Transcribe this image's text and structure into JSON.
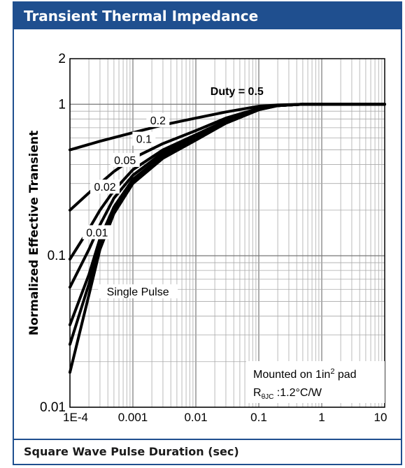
{
  "header": {
    "title": "Transient Thermal Impedance"
  },
  "footer": {
    "xlabel": "Square Wave Pulse Duration (sec)"
  },
  "chart_data": {
    "type": "line",
    "title": "Transient Thermal Impedance",
    "xlabel": "Square Wave Pulse Duration (sec)",
    "ylabel": "Normalized Effective Transient",
    "x_scale": "log",
    "y_scale": "log",
    "xlim": [
      0.0001,
      10
    ],
    "ylim": [
      0.01,
      2
    ],
    "x_ticks": [
      {
        "value": 0.0001,
        "label": "1E-4"
      },
      {
        "value": 0.001,
        "label": "0.001"
      },
      {
        "value": 0.01,
        "label": "0.01"
      },
      {
        "value": 0.1,
        "label": "0.1"
      },
      {
        "value": 1,
        "label": "1"
      },
      {
        "value": 10,
        "label": "10"
      }
    ],
    "y_ticks": [
      {
        "value": 0.01,
        "label": "0.01"
      },
      {
        "value": 0.1,
        "label": "0.1"
      },
      {
        "value": 1,
        "label": "1"
      },
      {
        "value": 2,
        "label": "2"
      }
    ],
    "grid": true,
    "color": "#000000",
    "series": [
      {
        "name": "Duty = 0.5",
        "x": [
          0.0001,
          0.0003,
          0.001,
          0.003,
          0.01,
          0.03,
          0.1,
          0.2,
          0.5,
          1,
          10
        ],
        "y": [
          0.5,
          0.57,
          0.65,
          0.73,
          0.81,
          0.89,
          0.97,
          0.99,
          1.0,
          1.0,
          1.0
        ]
      },
      {
        "name": "0.2",
        "x": [
          0.0001,
          0.0002,
          0.0003,
          0.0005,
          0.001,
          0.003,
          0.01,
          0.03,
          0.1,
          0.2,
          0.5,
          1,
          10
        ],
        "y": [
          0.2,
          0.26,
          0.3,
          0.36,
          0.44,
          0.55,
          0.67,
          0.81,
          0.94,
          0.98,
          1.0,
          1.0,
          1.0
        ]
      },
      {
        "name": "0.1",
        "x": [
          0.0001,
          0.0002,
          0.0003,
          0.0005,
          0.001,
          0.003,
          0.01,
          0.03,
          0.1,
          0.2,
          0.5,
          1,
          10
        ],
        "y": [
          0.095,
          0.15,
          0.2,
          0.27,
          0.37,
          0.5,
          0.63,
          0.78,
          0.93,
          0.98,
          1.0,
          1.0,
          1.0
        ]
      },
      {
        "name": "0.05",
        "x": [
          0.0001,
          0.0002,
          0.0003,
          0.0005,
          0.001,
          0.003,
          0.01,
          0.03,
          0.1,
          0.2,
          0.5,
          1,
          10
        ],
        "y": [
          0.062,
          0.11,
          0.16,
          0.24,
          0.34,
          0.48,
          0.61,
          0.77,
          0.93,
          0.98,
          1.0,
          1.0,
          1.0
        ]
      },
      {
        "name": "0.02",
        "x": [
          0.0001,
          0.0002,
          0.0003,
          0.0005,
          0.001,
          0.003,
          0.01,
          0.03,
          0.1,
          0.2,
          0.5,
          1,
          10
        ],
        "y": [
          0.035,
          0.075,
          0.13,
          0.21,
          0.32,
          0.46,
          0.6,
          0.76,
          0.92,
          0.98,
          1.0,
          1.0,
          1.0
        ]
      },
      {
        "name": "0.01",
        "x": [
          0.0001,
          0.0002,
          0.0003,
          0.0005,
          0.001,
          0.003,
          0.01,
          0.03,
          0.1,
          0.2,
          0.5,
          1,
          10
        ],
        "y": [
          0.026,
          0.065,
          0.12,
          0.2,
          0.31,
          0.45,
          0.59,
          0.75,
          0.92,
          0.98,
          1.0,
          1.0,
          1.0
        ]
      },
      {
        "name": "Single Pulse",
        "x": [
          0.0001,
          0.0002,
          0.0003,
          0.0005,
          0.001,
          0.003,
          0.01,
          0.03,
          0.1,
          0.2,
          0.5,
          1,
          10
        ],
        "y": [
          0.017,
          0.055,
          0.11,
          0.19,
          0.3,
          0.44,
          0.58,
          0.75,
          0.92,
          0.98,
          1.0,
          1.0,
          1.0
        ]
      }
    ],
    "annotation": {
      "line1": "Mounted on 1in",
      "line1_sup": "2",
      "line1_tail": " pad",
      "line2_prefix": "R",
      "line2_sub": "θJC",
      "line2_tail": " :1.2°C/W"
    }
  }
}
